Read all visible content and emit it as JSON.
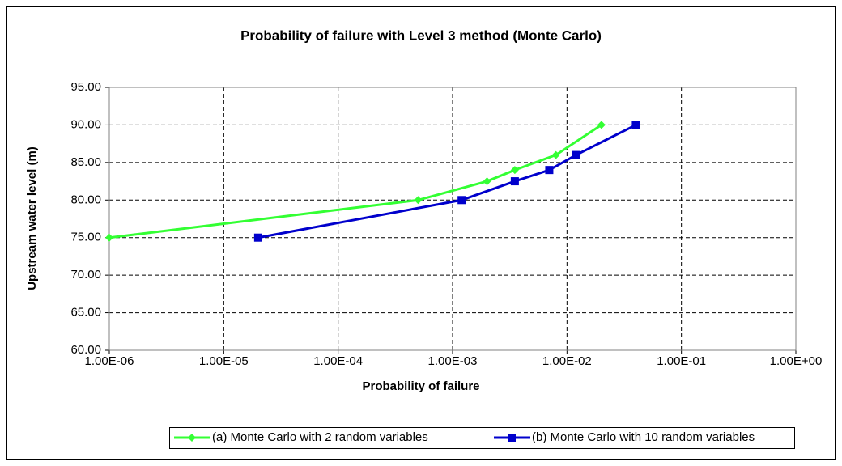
{
  "chart_data": {
    "type": "line",
    "title": "Probability of failure with Level 3 method (Monte Carlo)",
    "x_label": "Probability of failure",
    "y_label": "Upstream water level (m)",
    "log_x": true,
    "grid": true,
    "xlim": [
      1e-06,
      1
    ],
    "xticks": [
      {
        "value": 1e-06,
        "label": "1.00E-06"
      },
      {
        "value": 1e-05,
        "label": "1.00E-05"
      },
      {
        "value": 0.0001,
        "label": "1.00E-04"
      },
      {
        "value": 0.001,
        "label": "1.00E-03"
      },
      {
        "value": 0.01,
        "label": "1.00E-02"
      },
      {
        "value": 0.1,
        "label": "1.00E-01"
      },
      {
        "value": 1,
        "label": "1.00E+00"
      }
    ],
    "ylim": [
      60,
      95
    ],
    "yticks": [
      {
        "value": 60,
        "label": "60.00"
      },
      {
        "value": 65,
        "label": "65.00"
      },
      {
        "value": 70,
        "label": "70.00"
      },
      {
        "value": 75,
        "label": "75.00"
      },
      {
        "value": 80,
        "label": "80.00"
      },
      {
        "value": 85,
        "label": "85.00"
      },
      {
        "value": 90,
        "label": "90.00"
      },
      {
        "value": 95,
        "label": "95.00"
      }
    ],
    "series": [
      {
        "name": "(a) Monte Carlo with 2 random variables",
        "color": "#33ff33",
        "marker": "diamond",
        "x": [
          1e-06,
          0.0005,
          0.002,
          0.0035,
          0.008,
          0.02
        ],
        "values": [
          75,
          80,
          82.5,
          84,
          86,
          90
        ]
      },
      {
        "name": "(b) Monte Carlo with 10 random variables",
        "color": "#0000cc",
        "marker": "square",
        "x": [
          2e-05,
          0.0012,
          0.0035,
          0.007,
          0.012,
          0.04
        ],
        "values": [
          75,
          80,
          82.5,
          84,
          86,
          90
        ]
      }
    ]
  }
}
